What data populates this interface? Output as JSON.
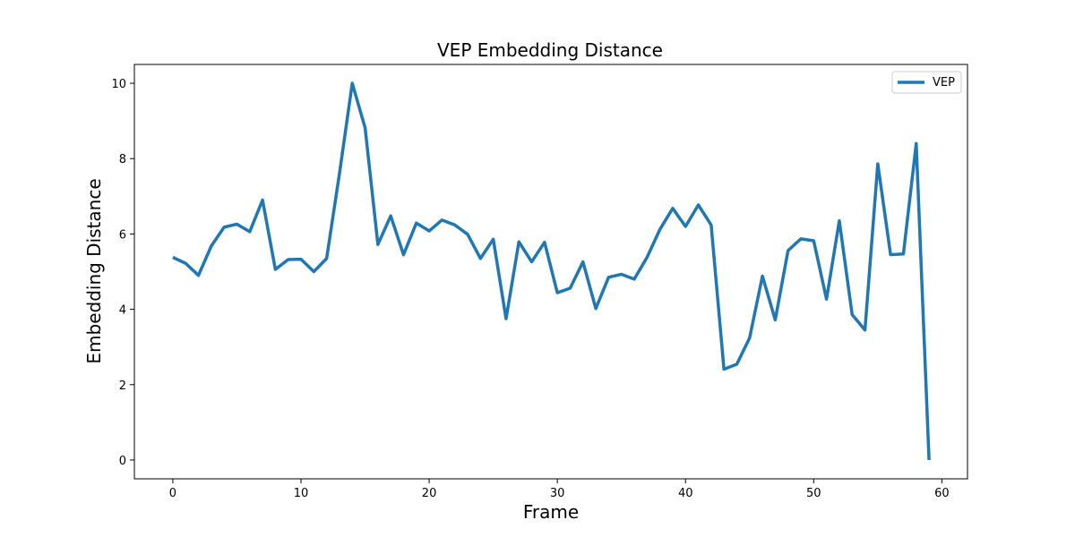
{
  "chart_data": {
    "type": "line",
    "title": "VEP Embedding Distance",
    "xlabel": "Frame",
    "ylabel": "Embedding Distance",
    "xlim": [
      -3,
      62
    ],
    "ylim": [
      -0.5,
      10.5
    ],
    "xticks": [
      0,
      10,
      20,
      30,
      40,
      50,
      60
    ],
    "yticks": [
      0,
      2,
      4,
      6,
      8,
      10
    ],
    "grid": false,
    "legend_position": "top-right",
    "series": [
      {
        "name": "VEP",
        "color": "#1f77b4",
        "x": [
          0,
          1,
          2,
          3,
          4,
          5,
          6,
          7,
          8,
          9,
          10,
          11,
          12,
          13,
          14,
          15,
          16,
          17,
          18,
          19,
          20,
          21,
          22,
          23,
          24,
          25,
          26,
          27,
          28,
          29,
          30,
          31,
          32,
          33,
          34,
          35,
          36,
          37,
          38,
          39,
          40,
          41,
          42,
          43,
          44,
          45,
          46,
          47,
          48,
          49,
          50,
          51,
          52,
          53,
          54,
          55,
          56,
          57,
          58,
          59
        ],
        "values": [
          5.38,
          5.22,
          4.9,
          5.68,
          6.18,
          6.26,
          6.06,
          6.9,
          5.06,
          5.32,
          5.33,
          5.0,
          5.35,
          7.6,
          10.0,
          8.82,
          5.72,
          6.48,
          5.45,
          6.29,
          6.08,
          6.37,
          6.24,
          5.99,
          5.35,
          5.86,
          3.75,
          5.79,
          5.26,
          5.78,
          4.44,
          4.56,
          5.26,
          4.02,
          4.85,
          4.93,
          4.8,
          5.38,
          6.12,
          6.68,
          6.2,
          6.77,
          6.24,
          2.41,
          2.54,
          3.24,
          4.88,
          3.72,
          5.56,
          5.87,
          5.82,
          4.27,
          6.35,
          3.86,
          3.45,
          7.86,
          5.45,
          5.47,
          8.4,
          0.0
        ]
      }
    ]
  }
}
